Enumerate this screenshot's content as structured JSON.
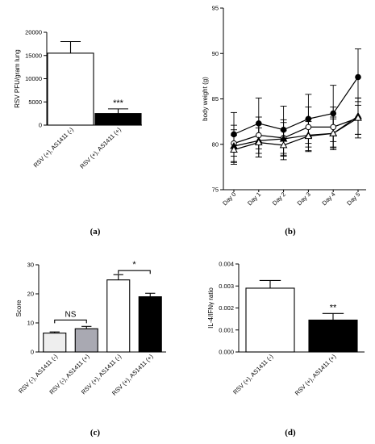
{
  "chart_data": [
    {
      "id": "a",
      "type": "bar",
      "panel_label": "(a)",
      "ylabel": "RSV PFU/gram lung",
      "ylim": [
        0,
        20000
      ],
      "yticks": [
        0,
        5000,
        10000,
        15000,
        20000
      ],
      "categories": [
        "RSV (+), AS1411 (-)",
        "RSV (+), AS1411 (+)"
      ],
      "values": [
        15500,
        2500
      ],
      "errors": [
        2500,
        1000
      ],
      "fills": [
        "#ffffff",
        "#000000"
      ],
      "annotations": [
        {
          "text": "***",
          "category": 1
        }
      ]
    },
    {
      "id": "b",
      "type": "line",
      "panel_label": "(b)",
      "ylabel": "body weight (g)",
      "ylim": [
        75,
        95
      ],
      "yticks": [
        75,
        80,
        85,
        90,
        95
      ],
      "x": [
        "Day 0",
        "Day 1",
        "Day 2",
        "Day 3",
        "Day 4",
        "Day 5"
      ],
      "series": [
        {
          "marker": "filled-circle",
          "values": [
            81.1,
            82.3,
            81.6,
            82.8,
            83.4,
            87.4
          ],
          "errors": [
            2.4,
            2.8,
            2.6,
            2.7,
            3.1,
            3.1
          ]
        },
        {
          "marker": "open-circle",
          "values": [
            80.1,
            81.0,
            80.7,
            81.9,
            81.9,
            82.9
          ],
          "errors": [
            2.0,
            2.0,
            2.0,
            2.2,
            2.2,
            2.2
          ]
        },
        {
          "marker": "filled-triangle",
          "values": [
            79.8,
            80.4,
            80.6,
            81.0,
            81.2,
            83.1
          ],
          "errors": [
            1.8,
            1.8,
            1.8,
            1.8,
            1.8,
            2.0
          ]
        },
        {
          "marker": "open-triangle",
          "values": [
            79.4,
            80.2,
            79.9,
            80.9,
            81.2,
            82.9
          ],
          "errors": [
            1.6,
            1.6,
            1.6,
            1.6,
            1.6,
            1.8
          ]
        }
      ]
    },
    {
      "id": "c",
      "type": "bar",
      "panel_label": "(c)",
      "ylabel": "Score",
      "ylim": [
        0,
        30
      ],
      "yticks": [
        0,
        10,
        20,
        30
      ],
      "categories": [
        "RSV (-), AS1411 (-)",
        "RSV (-), AS1411 (+)",
        "RSV (+), AS1411 (-)",
        "RSV (+), AS1411 (+)"
      ],
      "values": [
        6.5,
        8.0,
        24.8,
        19.0
      ],
      "errors": [
        0.4,
        0.8,
        1.8,
        1.2
      ],
      "fills": [
        "#eeeeee",
        "#a9a9b2",
        "#ffffff",
        "#000000"
      ],
      "brackets": [
        {
          "from": 0,
          "to": 1,
          "text": "NS",
          "y": 11
        },
        {
          "from": 2,
          "to": 3,
          "text": "*",
          "y": 28
        }
      ]
    },
    {
      "id": "d",
      "type": "bar",
      "panel_label": "(d)",
      "ylabel": "IL-4/IFNγ ratio",
      "ylim": [
        0,
        0.004
      ],
      "yticks": [
        0.0,
        0.001,
        0.002,
        0.003,
        0.004
      ],
      "ytick_labels": [
        "0.000",
        "0.001",
        "0.002",
        "0.003",
        "0.004"
      ],
      "categories": [
        "RSV (+), AS1411 (-)",
        "RSV (+), AS1411 (+)"
      ],
      "values": [
        0.0029,
        0.00145
      ],
      "errors": [
        0.00035,
        0.0003
      ],
      "fills": [
        "#ffffff",
        "#000000"
      ],
      "annotations": [
        {
          "text": "**",
          "category": 1
        }
      ]
    }
  ]
}
